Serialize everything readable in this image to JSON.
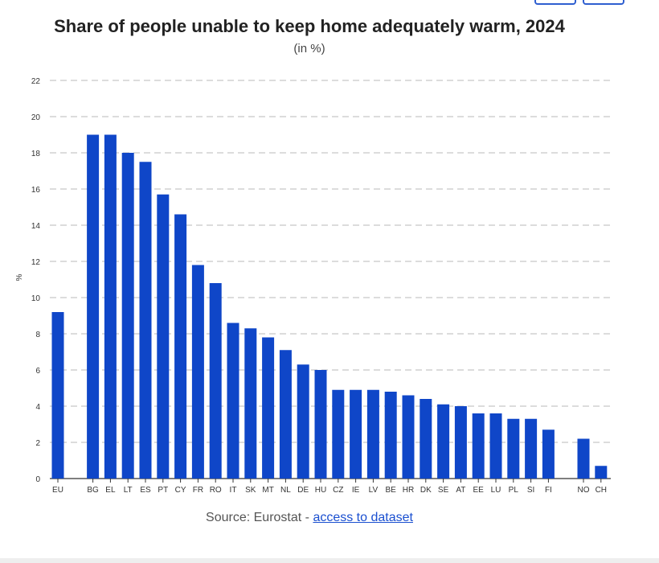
{
  "chart_data": {
    "type": "bar",
    "title": "Share of people unable to keep home adequately warm, 2024",
    "subtitle": "(in %)",
    "ylabel": "%",
    "xlabel": "",
    "ylim": [
      0,
      22
    ],
    "yticks": [
      0,
      2,
      4,
      6,
      8,
      10,
      12,
      14,
      16,
      18,
      20,
      22
    ],
    "grid": true,
    "bar_color": "#0f46c8",
    "categories": [
      "EU",
      "BG",
      "EL",
      "LT",
      "ES",
      "PT",
      "CY",
      "FR",
      "RO",
      "IT",
      "SK",
      "MT",
      "NL",
      "DE",
      "HU",
      "CZ",
      "IE",
      "LV",
      "BE",
      "HR",
      "DK",
      "SE",
      "AT",
      "EE",
      "LU",
      "PL",
      "SI",
      "FI",
      "NO",
      "CH"
    ],
    "values": [
      9.2,
      19.0,
      19.0,
      18.0,
      17.5,
      15.7,
      14.6,
      11.8,
      10.8,
      8.6,
      8.3,
      7.8,
      7.1,
      6.3,
      6.0,
      4.9,
      4.9,
      4.9,
      4.8,
      4.6,
      4.4,
      4.1,
      4.0,
      3.6,
      3.6,
      3.3,
      3.3,
      2.7,
      2.2,
      0.7
    ]
  },
  "source": {
    "text": "Source: Eurostat - ",
    "link": "access to dataset"
  }
}
